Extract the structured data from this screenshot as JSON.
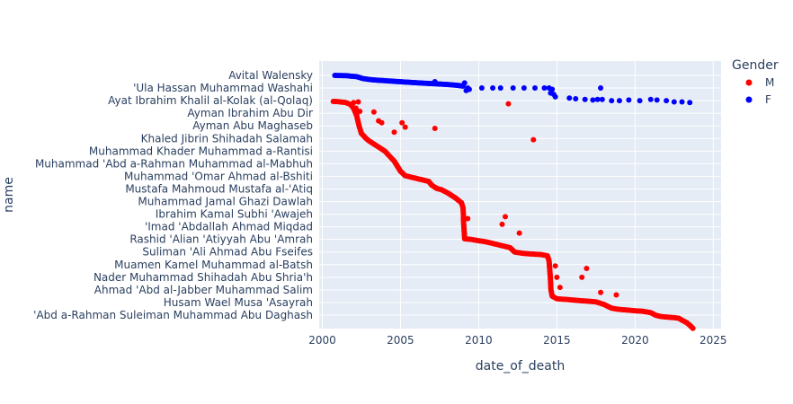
{
  "chart_data": {
    "type": "scatter",
    "xlabel": "date_of_death",
    "ylabel": "name",
    "xlim": [
      1999.8,
      2025.5
    ],
    "x_ticks": [
      "2000",
      "2005",
      "2010",
      "2015",
      "2020",
      "2025"
    ],
    "y_tick_labels": [
      "Avital Walensky",
      "'Ula Hassan Muhammad Washahi",
      "Ayat Ibrahim Khalil al-Kolak (al-Qolaq)",
      "Ayman Ibrahim Abu Dir",
      "Ayman Abu Maghaseb",
      "Khaled Jibrin Shihadah Salamah",
      "Muhammad Khader Muhammad a-Rantisi",
      "Muhammad 'Abd a-Rahman Muhammad al-Mabhuh",
      "Muhammad 'Omar Ahmad al-Bshiti",
      "Mustafa Mahmoud Mustafa al-'Atiq",
      "Muhammad Jamal Ghazi Dawlah",
      "Ibrahim Kamal Subhi 'Awajeh",
      "'Imad 'Abdallah Ahmad Miqdad",
      "Rashid 'Alian 'Atiyyah Abu 'Amrah",
      "Suliman 'Ali Ahmad Abu Fseifes",
      "Muamen Kamel Muhammad al-Batsh",
      "Nader Muhammad Shihadah Abu Shria'h",
      "Ahmad 'Abd al-Jabber Muhammad Salim",
      "Husam Wael Musa 'Asayrah",
      "'Abd a-Rahman Suleiman Muhammad Abu Daghash"
    ],
    "legend": {
      "title": "Gender",
      "position": "top-right"
    },
    "grid": true,
    "series": [
      {
        "name": "M",
        "color": "#ff0000",
        "main_curve": [
          [
            2000.7,
            2.06
          ],
          [
            2001.0,
            2.08
          ],
          [
            2001.5,
            2.15
          ],
          [
            2001.8,
            2.3
          ],
          [
            2002.0,
            2.6
          ],
          [
            2002.2,
            3.2
          ],
          [
            2002.35,
            4.0
          ],
          [
            2002.5,
            4.6
          ],
          [
            2002.8,
            5.0
          ],
          [
            2003.0,
            5.2
          ],
          [
            2003.5,
            5.6
          ],
          [
            2004.0,
            6.0
          ],
          [
            2004.3,
            6.4
          ],
          [
            2004.6,
            6.8
          ],
          [
            2004.8,
            7.2
          ],
          [
            2005.0,
            7.6
          ],
          [
            2005.3,
            7.95
          ],
          [
            2005.8,
            8.1
          ],
          [
            2006.3,
            8.25
          ],
          [
            2006.8,
            8.4
          ],
          [
            2007.0,
            8.7
          ],
          [
            2007.3,
            8.95
          ],
          [
            2007.6,
            9.05
          ],
          [
            2008.0,
            9.3
          ],
          [
            2008.5,
            9.7
          ],
          [
            2008.9,
            10.1
          ],
          [
            2009.0,
            10.5
          ],
          [
            2009.02,
            11.0
          ],
          [
            2009.03,
            11.5
          ],
          [
            2009.05,
            12.0
          ],
          [
            2009.08,
            12.5
          ],
          [
            2009.1,
            12.95
          ],
          [
            2009.5,
            13.0
          ],
          [
            2010.0,
            13.1
          ],
          [
            2010.5,
            13.2
          ],
          [
            2011.0,
            13.35
          ],
          [
            2011.5,
            13.5
          ],
          [
            2012.0,
            13.65
          ],
          [
            2012.3,
            14.0
          ],
          [
            2012.8,
            14.1
          ],
          [
            2013.3,
            14.15
          ],
          [
            2014.0,
            14.2
          ],
          [
            2014.4,
            14.3
          ],
          [
            2014.5,
            14.7
          ],
          [
            2014.52,
            15.0
          ],
          [
            2014.55,
            15.5
          ],
          [
            2014.58,
            16.0
          ],
          [
            2014.6,
            16.5
          ],
          [
            2014.62,
            17.0
          ],
          [
            2014.7,
            17.5
          ],
          [
            2015.0,
            17.7
          ],
          [
            2015.5,
            17.75
          ],
          [
            2016.0,
            17.8
          ],
          [
            2016.5,
            17.85
          ],
          [
            2017.0,
            17.9
          ],
          [
            2017.5,
            17.95
          ],
          [
            2018.0,
            18.15
          ],
          [
            2018.5,
            18.45
          ],
          [
            2019.0,
            18.55
          ],
          [
            2019.5,
            18.6
          ],
          [
            2020.0,
            18.65
          ],
          [
            2020.5,
            18.7
          ],
          [
            2021.0,
            18.8
          ],
          [
            2021.3,
            19.0
          ],
          [
            2021.6,
            19.1
          ],
          [
            2022.0,
            19.15
          ],
          [
            2022.5,
            19.2
          ],
          [
            2022.8,
            19.25
          ],
          [
            2023.0,
            19.4
          ],
          [
            2023.3,
            19.6
          ],
          [
            2023.5,
            19.8
          ],
          [
            2023.7,
            20.05
          ]
        ],
        "outliers": [
          [
            2002.0,
            2.15
          ],
          [
            2002.3,
            2.1
          ],
          [
            2002.15,
            2.6
          ],
          [
            2002.4,
            2.85
          ],
          [
            2002.2,
            3.15
          ],
          [
            2003.3,
            2.9
          ],
          [
            2003.6,
            3.6
          ],
          [
            2003.8,
            3.75
          ],
          [
            2004.6,
            4.5
          ],
          [
            2005.1,
            3.75
          ],
          [
            2005.3,
            4.1
          ],
          [
            2007.2,
            4.2
          ],
          [
            2011.9,
            2.25
          ],
          [
            2013.5,
            5.1
          ],
          [
            2009.3,
            11.35
          ],
          [
            2011.7,
            11.2
          ],
          [
            2011.5,
            11.8
          ],
          [
            2012.6,
            12.5
          ],
          [
            2014.9,
            15.1
          ],
          [
            2015.0,
            16.0
          ],
          [
            2015.2,
            16.8
          ],
          [
            2016.6,
            16.0
          ],
          [
            2016.9,
            15.3
          ],
          [
            2017.8,
            17.2
          ],
          [
            2018.8,
            17.4
          ]
        ]
      },
      {
        "name": "F",
        "color": "#0000ff",
        "main_curve": [
          [
            2000.8,
            0.0
          ],
          [
            2001.5,
            0.02
          ],
          [
            2002.2,
            0.1
          ],
          [
            2002.6,
            0.25
          ],
          [
            2003.2,
            0.35
          ],
          [
            2004.0,
            0.42
          ],
          [
            2005.0,
            0.5
          ],
          [
            2006.0,
            0.58
          ],
          [
            2007.0,
            0.65
          ],
          [
            2008.0,
            0.72
          ],
          [
            2008.6,
            0.78
          ],
          [
            2009.0,
            0.85
          ]
        ],
        "outliers": [
          [
            2007.2,
            0.5
          ],
          [
            2009.1,
            0.6
          ],
          [
            2009.3,
            1.0
          ],
          [
            2009.4,
            1.1
          ],
          [
            2009.2,
            1.2
          ],
          [
            2010.2,
            1.0
          ],
          [
            2010.9,
            1.0
          ],
          [
            2011.4,
            1.0
          ],
          [
            2012.2,
            1.0
          ],
          [
            2012.9,
            1.0
          ],
          [
            2013.6,
            1.0
          ],
          [
            2014.2,
            1.0
          ],
          [
            2014.5,
            1.0
          ],
          [
            2014.6,
            1.4
          ],
          [
            2014.7,
            1.1
          ],
          [
            2014.8,
            1.5
          ],
          [
            2014.9,
            1.7
          ],
          [
            2015.8,
            1.8
          ],
          [
            2016.2,
            1.85
          ],
          [
            2016.8,
            1.9
          ],
          [
            2017.3,
            1.95
          ],
          [
            2017.6,
            1.9
          ],
          [
            2017.9,
            1.9
          ],
          [
            2018.5,
            2.0
          ],
          [
            2019.0,
            2.0
          ],
          [
            2019.6,
            1.95
          ],
          [
            2021.0,
            1.9
          ],
          [
            2021.4,
            1.95
          ],
          [
            2022.0,
            2.0
          ],
          [
            2022.5,
            2.1
          ],
          [
            2023.0,
            2.1
          ],
          [
            2023.5,
            2.15
          ],
          [
            2017.8,
            1.0
          ],
          [
            2020.3,
            2.0
          ]
        ]
      }
    ]
  }
}
